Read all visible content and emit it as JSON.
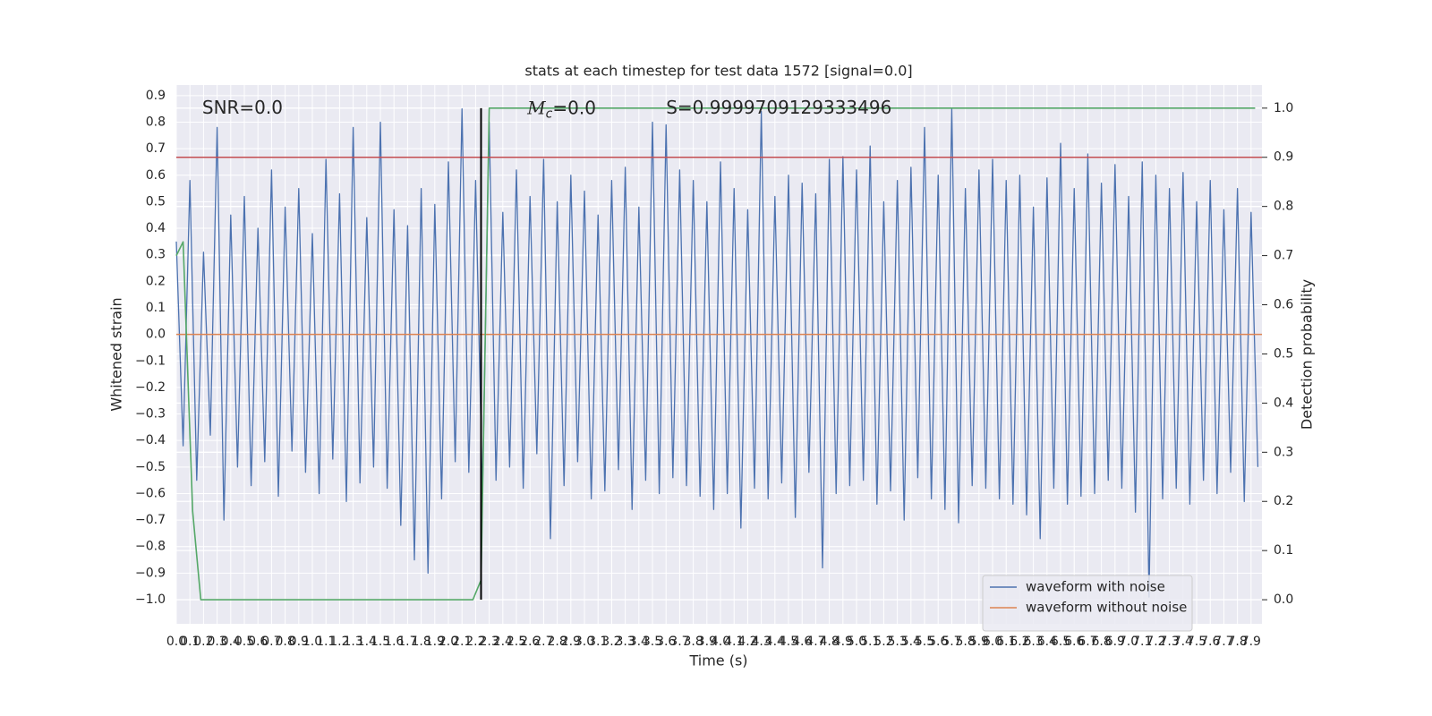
{
  "chart_data": {
    "type": "line",
    "title": "stats at each timestep for test data 1572 [signal=0.0]",
    "xlabel": "Time (s)",
    "ylabel": "Whitened strain",
    "y2label": "Detection probability",
    "annotations": [
      {
        "text": "SNR=0.0",
        "x": 0.19,
        "y": 0.85
      },
      {
        "symbol": "M",
        "subscript": "c",
        "text": "=0.0",
        "x": 2.58,
        "y": 0.85
      },
      {
        "text": "S=0.9999709129333496",
        "x": 3.6,
        "y": 0.85
      }
    ],
    "xlim": [
      0,
      7.98
    ],
    "ylim": [
      -1.091,
      0.94
    ],
    "y2lim": [
      -0.049,
      1.047
    ],
    "grid": true,
    "legend": "lower right",
    "xticks": [
      {
        "value": 0,
        "label": "0.0"
      },
      0.1,
      0.2,
      0.3,
      0.4,
      0.5,
      0.6,
      0.7,
      0.8,
      0.9,
      {
        "value": 1,
        "label": "1.0"
      },
      1.1,
      1.2,
      1.3,
      1.4,
      1.5,
      1.6,
      1.7,
      1.8,
      1.9,
      {
        "value": 2,
        "label": "2.0"
      },
      2.1,
      2.2,
      2.3,
      2.4,
      2.5,
      2.6,
      2.7,
      2.8,
      2.9,
      {
        "value": 3,
        "label": "3.0"
      },
      3.1,
      3.2,
      3.3,
      3.4,
      3.5,
      3.6,
      3.7,
      3.8,
      3.9,
      {
        "value": 4,
        "label": "4.0"
      },
      4.1,
      4.2,
      4.3,
      4.4,
      4.5,
      4.6,
      4.7,
      4.8,
      4.9,
      {
        "value": 5,
        "label": "5.0"
      },
      5.1,
      5.2,
      5.3,
      5.4,
      5.5,
      5.6,
      5.7,
      5.8,
      5.9,
      {
        "value": 6,
        "label": "6.0"
      },
      6.1,
      6.2,
      6.3,
      6.4,
      6.5,
      6.6,
      6.7,
      6.8,
      6.9,
      {
        "value": 7,
        "label": "7.0"
      },
      7.1,
      7.2,
      7.3,
      7.4,
      7.5,
      7.6,
      7.7,
      7.8,
      7.9
    ],
    "yticks": [
      {
        "value": -1,
        "label": "−1.0"
      },
      {
        "value": -0.9,
        "label": "−0.9"
      },
      {
        "value": -0.8,
        "label": "−0.8"
      },
      {
        "value": -0.7,
        "label": "−0.7"
      },
      {
        "value": -0.6,
        "label": "−0.6"
      },
      {
        "value": -0.5,
        "label": "−0.5"
      },
      {
        "value": -0.4,
        "label": "−0.4"
      },
      {
        "value": -0.3,
        "label": "−0.3"
      },
      {
        "value": -0.2,
        "label": "−0.2"
      },
      {
        "value": -0.1,
        "label": "−0.1"
      },
      {
        "value": 0,
        "label": "0.0"
      },
      0.1,
      0.2,
      0.3,
      0.4,
      0.5,
      0.6,
      0.7,
      0.8,
      0.9
    ],
    "y2ticks": [
      {
        "value": 0,
        "label": "0.0"
      },
      0.1,
      0.2,
      0.3,
      0.4,
      0.5,
      0.6,
      0.7,
      0.8,
      0.9,
      {
        "value": 1,
        "label": "1.0"
      }
    ],
    "hlines": [
      {
        "value": 0.9,
        "axis": "y2",
        "color": "#c44e52"
      }
    ],
    "vlines": [
      {
        "value": 2.24,
        "color": "#000000"
      }
    ],
    "series": [
      {
        "name": "waveform with noise",
        "color": "#4c72b0",
        "x": [
          0,
          0.05,
          0.1,
          0.15,
          0.2,
          0.25,
          0.3,
          0.35,
          0.4,
          0.45,
          0.5,
          0.55,
          0.6,
          0.65,
          0.7,
          0.75,
          0.8,
          0.85,
          0.9,
          0.95,
          1,
          1.05,
          1.1,
          1.15,
          1.2,
          1.25,
          1.3,
          1.35,
          1.4,
          1.45,
          1.5,
          1.55,
          1.6,
          1.65,
          1.7,
          1.75,
          1.8,
          1.85,
          1.9,
          1.95,
          2,
          2.05,
          2.1,
          2.15,
          2.2,
          2.25,
          2.3,
          2.35,
          2.4,
          2.45,
          2.5,
          2.55,
          2.6,
          2.65,
          2.7,
          2.75,
          2.8,
          2.85,
          2.9,
          2.95,
          3,
          3.05,
          3.1,
          3.15,
          3.2,
          3.25,
          3.3,
          3.35,
          3.4,
          3.45,
          3.5,
          3.55,
          3.6,
          3.65,
          3.7,
          3.75,
          3.8,
          3.85,
          3.9,
          3.95,
          4,
          4.05,
          4.1,
          4.15,
          4.2,
          4.25,
          4.3,
          4.35,
          4.4,
          4.45,
          4.5,
          4.55,
          4.6,
          4.65,
          4.7,
          4.75,
          4.8,
          4.85,
          4.9,
          4.95,
          5,
          5.05,
          5.1,
          5.15,
          5.2,
          5.25,
          5.3,
          5.35,
          5.4,
          5.45,
          5.5,
          5.55,
          5.6,
          5.65,
          5.7,
          5.75,
          5.8,
          5.85,
          5.9,
          5.95,
          6,
          6.05,
          6.1,
          6.15,
          6.2,
          6.25,
          6.3,
          6.35,
          6.4,
          6.45,
          6.5,
          6.55,
          6.6,
          6.65,
          6.7,
          6.75,
          6.8,
          6.85,
          6.9,
          6.95,
          7,
          7.05,
          7.1,
          7.15,
          7.2,
          7.25,
          7.3,
          7.35,
          7.4,
          7.45,
          7.5,
          7.55,
          7.6,
          7.65,
          7.7,
          7.75,
          7.8,
          7.85,
          7.9,
          7.95
        ],
        "values": [
          0.35,
          -0.42,
          0.58,
          -0.55,
          0.31,
          -0.38,
          0.78,
          -0.7,
          0.45,
          -0.5,
          0.52,
          -0.57,
          0.4,
          -0.48,
          0.62,
          -0.61,
          0.48,
          -0.44,
          0.55,
          -0.52,
          0.38,
          -0.6,
          0.66,
          -0.47,
          0.53,
          -0.63,
          0.78,
          -0.56,
          0.44,
          -0.5,
          0.8,
          -0.58,
          0.47,
          -0.72,
          0.41,
          -0.85,
          0.55,
          -0.9,
          0.49,
          -0.62,
          0.65,
          -0.48,
          0.85,
          -0.52,
          0.58,
          -0.6,
          0.8,
          -0.55,
          0.46,
          -0.5,
          0.62,
          -0.58,
          0.52,
          -0.45,
          0.66,
          -0.77,
          0.5,
          -0.57,
          0.6,
          -0.48,
          0.54,
          -0.62,
          0.45,
          -0.59,
          0.58,
          -0.51,
          0.63,
          -0.66,
          0.48,
          -0.55,
          0.8,
          -0.6,
          0.79,
          -0.54,
          0.62,
          -0.57,
          0.58,
          -0.61,
          0.5,
          -0.66,
          0.65,
          -0.6,
          0.55,
          -0.73,
          0.47,
          -0.58,
          0.84,
          -0.62,
          0.52,
          -0.56,
          0.6,
          -0.69,
          0.57,
          -0.52,
          0.53,
          -0.88,
          0.66,
          -0.6,
          0.67,
          -0.57,
          0.62,
          -0.55,
          0.71,
          -0.64,
          0.5,
          -0.59,
          0.58,
          -0.7,
          0.63,
          -0.54,
          0.78,
          -0.62,
          0.6,
          -0.66,
          0.85,
          -0.71,
          0.55,
          -0.57,
          0.62,
          -0.58,
          0.66,
          -0.62,
          0.58,
          -0.64,
          0.6,
          -0.68,
          0.48,
          -0.77,
          0.59,
          -0.58,
          0.72,
          -0.64,
          0.55,
          -0.61,
          0.68,
          -0.6,
          0.57,
          -0.55,
          0.64,
          -0.58,
          0.52,
          -0.67,
          0.65,
          -0.99,
          0.6,
          -0.62,
          0.55,
          -0.58,
          0.61,
          -0.64,
          0.5,
          -0.55,
          0.58,
          -0.6,
          0.47,
          -0.52,
          0.55,
          -0.63,
          0.46,
          -0.5
        ]
      },
      {
        "name": "waveform without noise",
        "color": "#dd8452",
        "x": [
          0,
          7.98
        ],
        "values": [
          0,
          0
        ]
      },
      {
        "color": "#55a868",
        "axis": "y2",
        "x": [
          0,
          0.05,
          0.12,
          0.18,
          2.18,
          2.24,
          2.3,
          7.93
        ],
        "values": [
          0.7,
          0.728,
          0.18,
          0,
          0,
          0.04,
          1,
          1
        ]
      }
    ]
  }
}
